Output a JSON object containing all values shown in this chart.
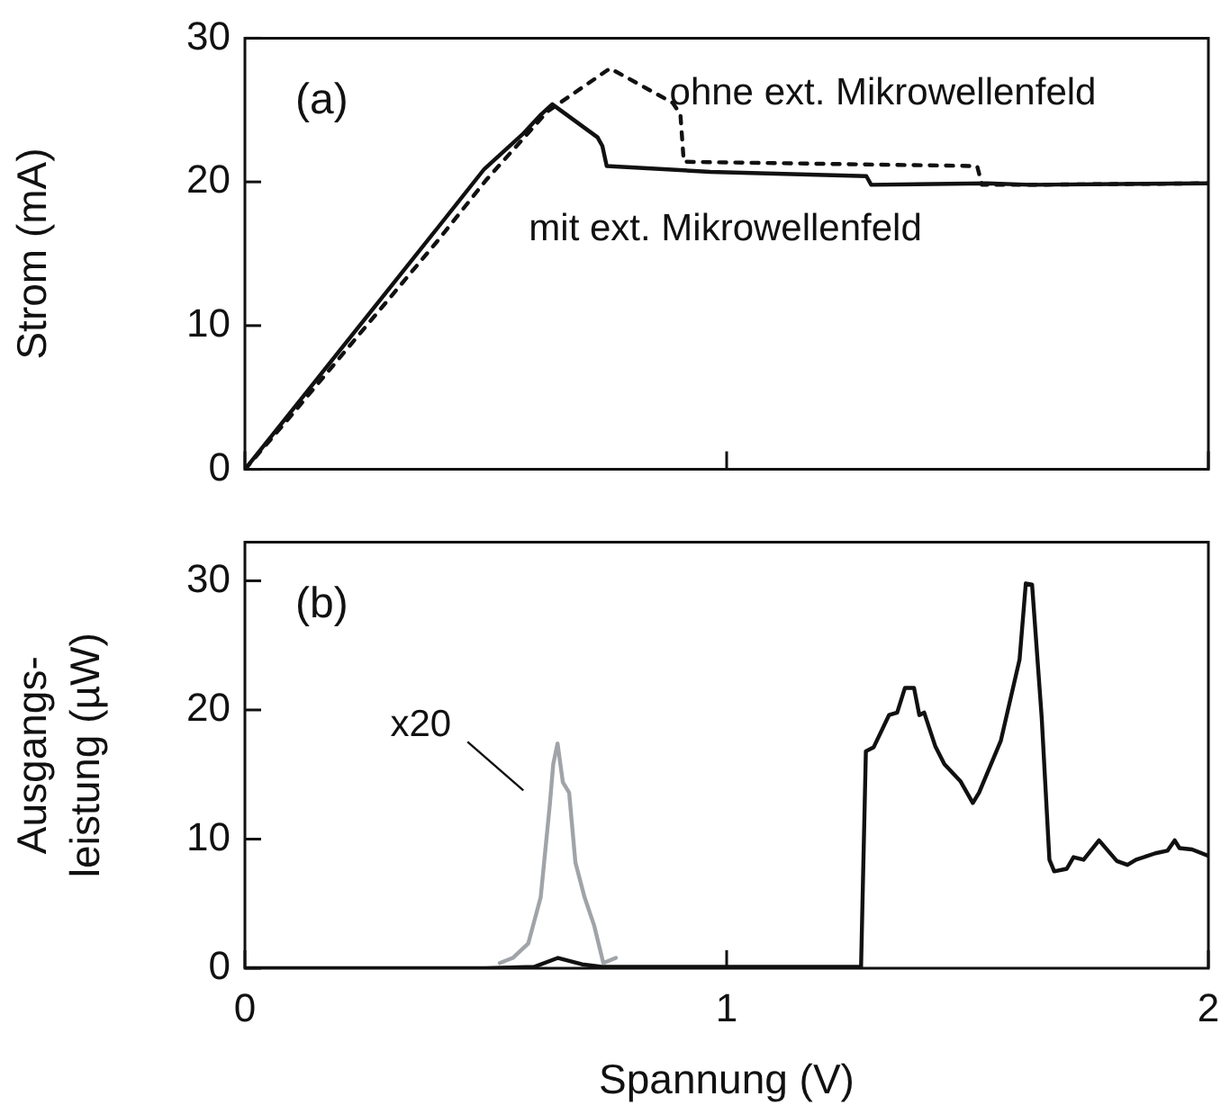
{
  "chart_data": [
    {
      "type": "line",
      "ylabel": "Strom (mA)",
      "annotations": [
        "(a)"
      ],
      "xlim": [
        0,
        2
      ],
      "xticks": [
        0,
        1,
        2
      ],
      "ylim": [
        0,
        30
      ],
      "yticks": [
        0,
        10,
        20,
        30
      ],
      "tick_labels": "y",
      "grid": false,
      "legend": false,
      "marker": "none",
      "series": [
        {
          "name": "mit ext. Mikrowellenfeld",
          "color": "#111111",
          "line_style": "solid",
          "x": [
            0,
            0.1,
            0.2,
            0.3,
            0.4,
            0.497,
            0.576,
            0.615,
            0.638,
            0.732,
            0.742,
            0.751,
            0.966,
            1.29,
            1.3,
            1.54,
            1.63,
            2.0
          ],
          "values": [
            0,
            4.2,
            8.4,
            12.6,
            16.8,
            20.9,
            23.3,
            24.7,
            25.4,
            23.1,
            22.5,
            21.1,
            20.7,
            20.4,
            19.8,
            19.9,
            19.8,
            19.9
          ]
        },
        {
          "name": "ohne ext. Mikrowellenfeld",
          "color": "#111111",
          "line_style": "dashed",
          "x": [
            0,
            0.1,
            0.2,
            0.3,
            0.4,
            0.5,
            0.628,
            0.758,
            0.888,
            0.904,
            0.911,
            1.52,
            1.53,
            1.63,
            2.0
          ],
          "values": [
            0,
            3.9,
            7.9,
            11.9,
            15.9,
            20.1,
            24.9,
            27.9,
            25.5,
            24.7,
            21.4,
            21.1,
            19.8,
            19.8,
            19.9
          ]
        }
      ]
    },
    {
      "type": "line",
      "xlabel": "Spannung (V)",
      "ylabel": "Ausgangs-\nleistung (µW)",
      "annotations": [
        "(b)"
      ],
      "xlim": [
        0,
        2
      ],
      "xticks": [
        0,
        1,
        2
      ],
      "ylim": [
        0,
        33
      ],
      "yticks": [
        0,
        10,
        20,
        30
      ],
      "grid": false,
      "legend": false,
      "marker": "none",
      "series": [
        {
          "color": "#111111",
          "x": [
            0,
            0.5,
            0.6,
            0.65,
            0.7,
            0.745,
            1.0,
            1.279,
            1.289,
            1.305,
            1.337,
            1.354,
            1.37,
            1.389,
            1.4,
            1.41,
            1.433,
            1.452,
            1.485,
            1.511,
            1.524,
            1.569,
            1.608,
            1.621,
            1.634,
            1.654,
            1.67,
            1.68,
            1.706,
            1.72,
            1.741,
            1.773,
            1.81,
            1.832,
            1.85,
            1.89,
            1.915,
            1.93,
            1.94,
            1.966,
            2.0
          ],
          "values": [
            0,
            0,
            0.1,
            0.8,
            0.3,
            0.1,
            0.1,
            0.1,
            16.8,
            17.1,
            19.6,
            19.8,
            21.7,
            21.7,
            19.6,
            19.8,
            17.2,
            15.8,
            14.5,
            12.8,
            13.6,
            17.6,
            23.9,
            29.8,
            29.7,
            19.4,
            8.4,
            7.5,
            7.7,
            8.6,
            8.4,
            9.9,
            8.3,
            8.0,
            8.4,
            8.9,
            9.1,
            9.9,
            9.3,
            9.2,
            8.7
          ]
        },
        {
          "name": "x20",
          "color": "#a0a4a8",
          "x": [
            0.529,
            0.556,
            0.588,
            0.614,
            0.633,
            0.64,
            0.649,
            0.66,
            0.673,
            0.686,
            0.705,
            0.725,
            0.744,
            0.77
          ],
          "values": [
            0.4,
            0.8,
            1.9,
            5.5,
            12.7,
            15.8,
            17.4,
            14.4,
            13.6,
            8.2,
            5.5,
            3.3,
            0.4,
            0.8
          ]
        }
      ]
    }
  ]
}
